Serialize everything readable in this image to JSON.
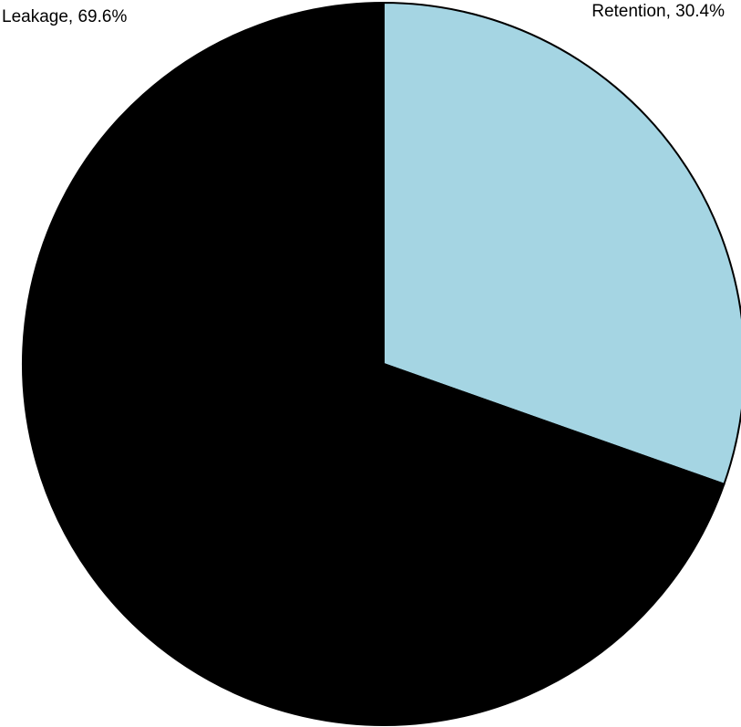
{
  "chart_data": {
    "type": "pie",
    "title": "",
    "start_angle_deg": 0,
    "direction": "clockwise",
    "slices": [
      {
        "label": "Retention",
        "value": 30.4,
        "display": "Retention, 30.4%",
        "color": "#a5d5e3"
      },
      {
        "label": "Leakage",
        "value": 69.6,
        "display": "Leakage, 69.6%",
        "color": "#000000"
      }
    ],
    "slice_border_color": "#000000"
  }
}
